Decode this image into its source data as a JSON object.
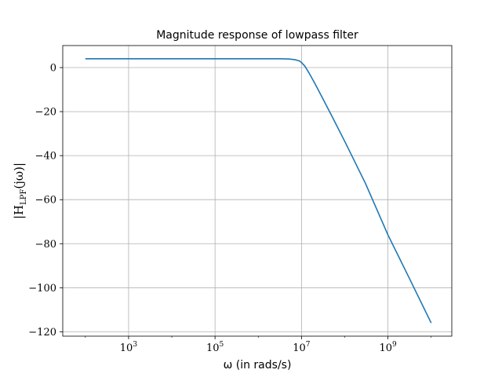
{
  "chart_data": {
    "type": "line",
    "title": "Magnitude response of lowpass filter",
    "xlabel": "ω (in rads/s)",
    "ylabel_main": "|H",
    "ylabel_sub": "LPF",
    "ylabel_tail": "(jω)|",
    "x_scale": "log",
    "x_range": [
      30,
      30000000000
    ],
    "y_range": [
      -122,
      10
    ],
    "x_ticks": [
      {
        "value": 1000,
        "base": "10",
        "exp": "3"
      },
      {
        "value": 100000,
        "base": "10",
        "exp": "5"
      },
      {
        "value": 10000000,
        "base": "10",
        "exp": "7"
      },
      {
        "value": 1000000000,
        "base": "10",
        "exp": "9"
      }
    ],
    "y_ticks": [
      {
        "value": 0,
        "label": "0"
      },
      {
        "value": -20,
        "label": "−20"
      },
      {
        "value": -40,
        "label": "−40"
      },
      {
        "value": -60,
        "label": "−60"
      },
      {
        "value": -80,
        "label": "−80"
      },
      {
        "value": -100,
        "label": "−100"
      },
      {
        "value": -120,
        "label": "−120"
      }
    ],
    "grid": true,
    "line_color": "#1f77b4",
    "series": [
      {
        "x": [
          100,
          1000,
          10000,
          100000,
          1000000,
          3000000,
          5000000,
          7000000,
          9000000,
          10000000,
          12000000,
          15000000,
          20000000,
          30000000,
          50000000,
          100000000,
          300000000,
          1000000000,
          3000000000,
          10000000000
        ],
        "y": [
          4,
          4,
          4,
          4,
          4,
          4,
          3.9,
          3.6,
          3,
          2.3,
          0.6,
          -2.5,
          -6.9,
          -13.5,
          -21.9,
          -33.5,
          -52.5,
          -76.0,
          -95.0,
          -116
        ]
      }
    ]
  }
}
